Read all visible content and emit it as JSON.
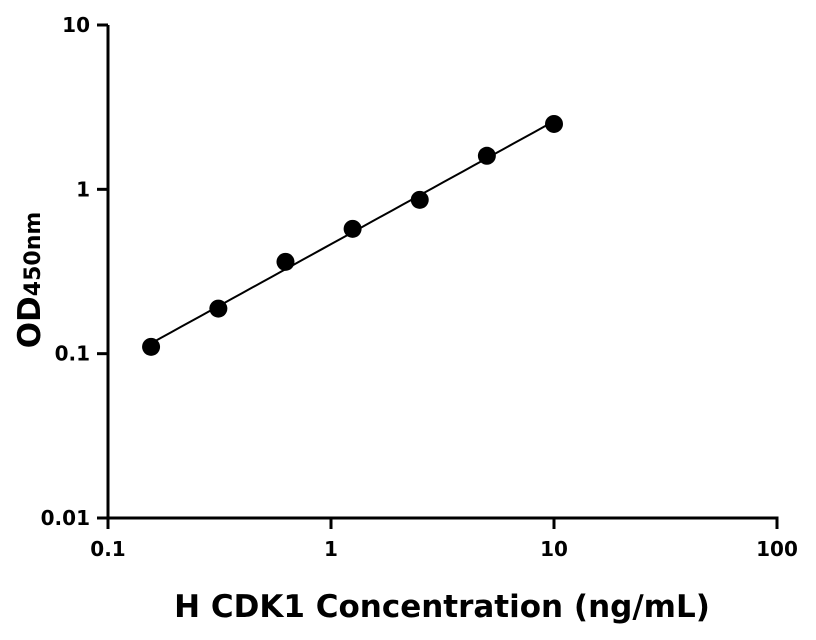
{
  "chart_data": {
    "type": "scatter",
    "xlabel": "H CDK1 Concentration (ng/mL)",
    "ylabel": "OD",
    "ylabel_subscript": "450nm",
    "x_scale": "log",
    "y_scale": "log",
    "xlim": [
      0.1,
      100
    ],
    "ylim": [
      0.01,
      10
    ],
    "x_ticks": [
      "0.1",
      "1",
      "10",
      "100"
    ],
    "y_ticks": [
      "0.01",
      "0.1",
      "1",
      "10"
    ],
    "grid": false,
    "legend": "none",
    "marker_color": "#000000",
    "line_color": "#000000",
    "fit_line": "log-log linear fit",
    "series": [
      {
        "x": [
          0.156,
          0.3125,
          0.625,
          1.25,
          2.5,
          5,
          10
        ],
        "y": [
          0.11,
          0.188,
          0.362,
          0.575,
          0.863,
          1.6,
          2.5
        ]
      }
    ]
  }
}
